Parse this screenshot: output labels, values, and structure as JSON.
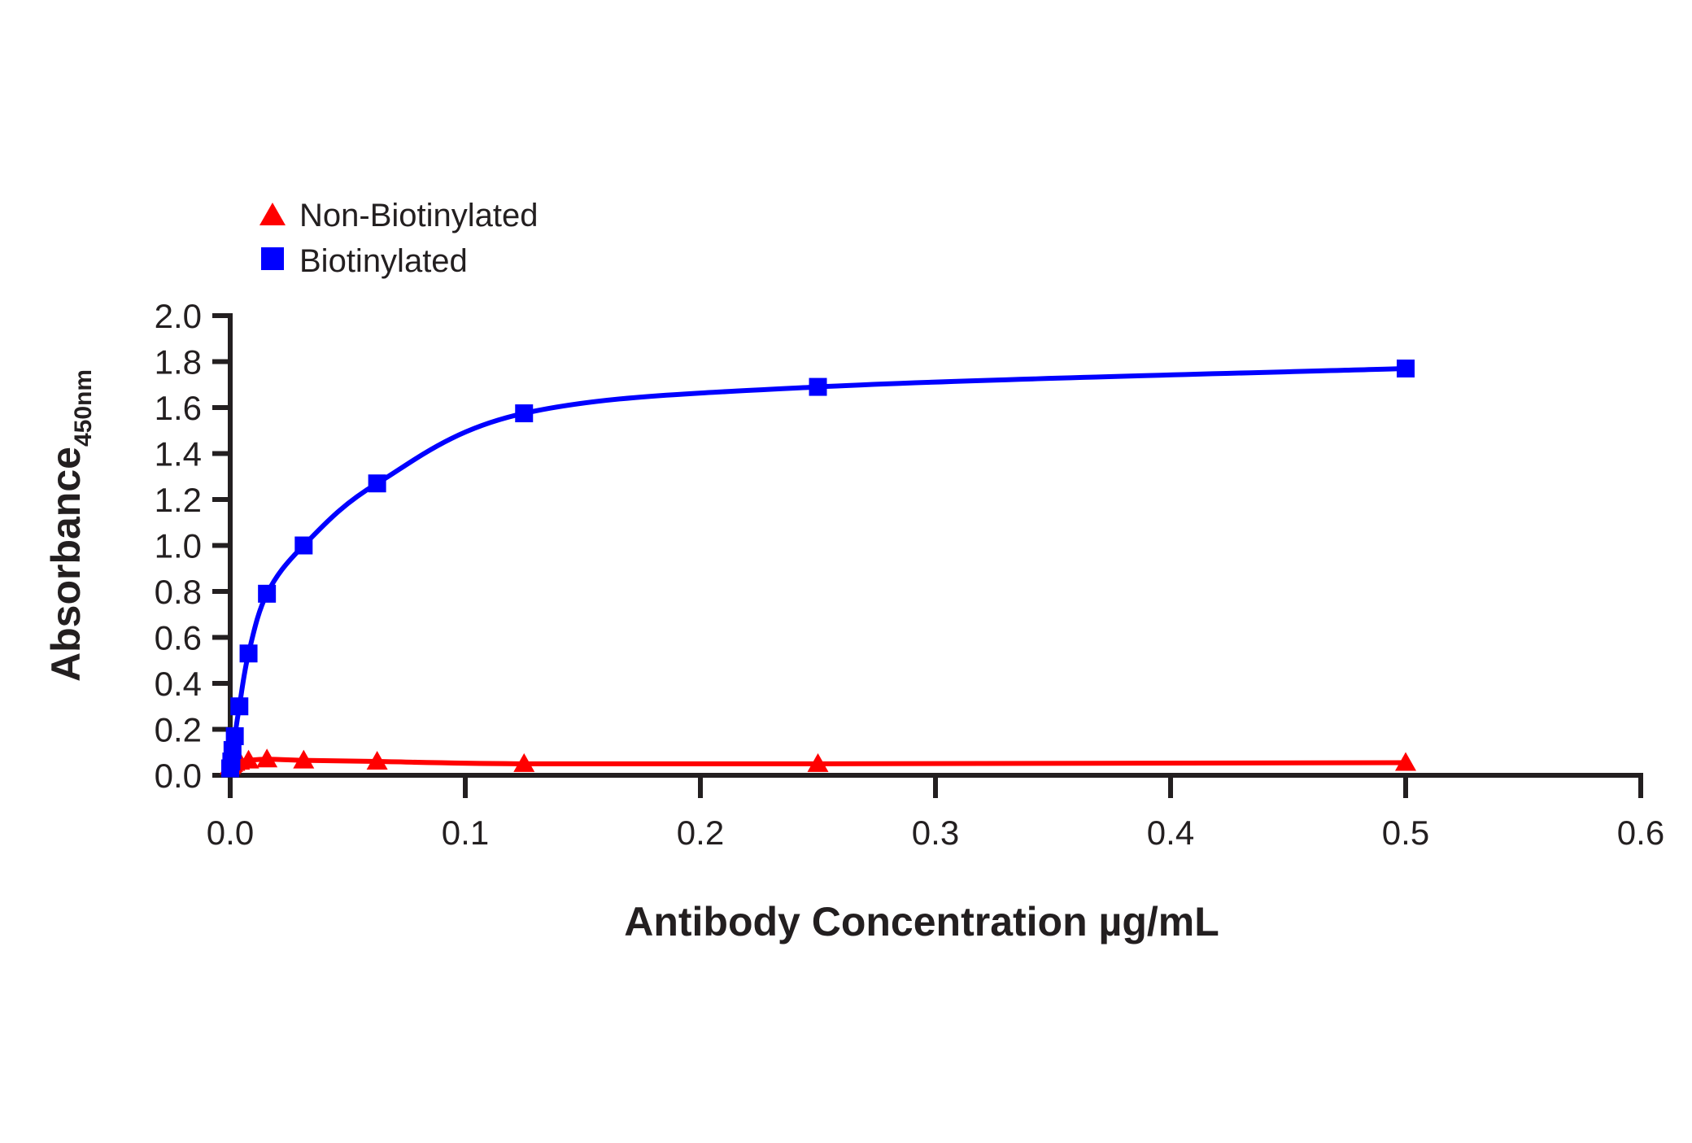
{
  "chart_data": {
    "type": "line",
    "title": "",
    "xlabel": "Antibody Concentration µg/mL",
    "ylabel": "Absorbance",
    "ylabel_subscript": "450nm",
    "xlim": [
      0.0,
      0.6
    ],
    "ylim": [
      0.0,
      2.0
    ],
    "x_ticks": [
      "0.0",
      "0.1",
      "0.2",
      "0.3",
      "0.4",
      "0.5",
      "0.6"
    ],
    "y_ticks": [
      "0.0",
      "0.2",
      "0.4",
      "0.6",
      "0.8",
      "1.0",
      "1.2",
      "1.4",
      "1.6",
      "1.8",
      "2.0"
    ],
    "grid": false,
    "legend_position": "top-left",
    "series": [
      {
        "name": "Non-Biotinylated",
        "color": "#ff0000",
        "marker": "triangle",
        "x": [
          0.0,
          0.000488,
          0.000977,
          0.00195,
          0.0039,
          0.0078,
          0.015625,
          0.03125,
          0.0625,
          0.125,
          0.25,
          0.5
        ],
        "y": [
          0.04,
          0.045,
          0.05,
          0.055,
          0.06,
          0.065,
          0.07,
          0.065,
          0.06,
          0.05,
          0.05,
          0.055
        ]
      },
      {
        "name": "Biotinylated",
        "color": "#0000ff",
        "marker": "square",
        "x": [
          0.0,
          0.000488,
          0.000977,
          0.00195,
          0.0039,
          0.0078,
          0.015625,
          0.03125,
          0.0625,
          0.125,
          0.25,
          0.5
        ],
        "y": [
          0.03,
          0.06,
          0.11,
          0.17,
          0.3,
          0.53,
          0.79,
          1.0,
          1.27,
          1.575,
          1.69,
          1.77
        ]
      }
    ]
  },
  "legend": {
    "items": [
      {
        "label": "Non-Biotinylated",
        "icon": "red-triangle-icon"
      },
      {
        "label": "Biotinylated",
        "icon": "blue-square-icon"
      }
    ]
  },
  "axes": {
    "x_title": "Antibody Concentration µg/mL",
    "y_title": "Absorbance",
    "y_title_sub": "450nm"
  }
}
